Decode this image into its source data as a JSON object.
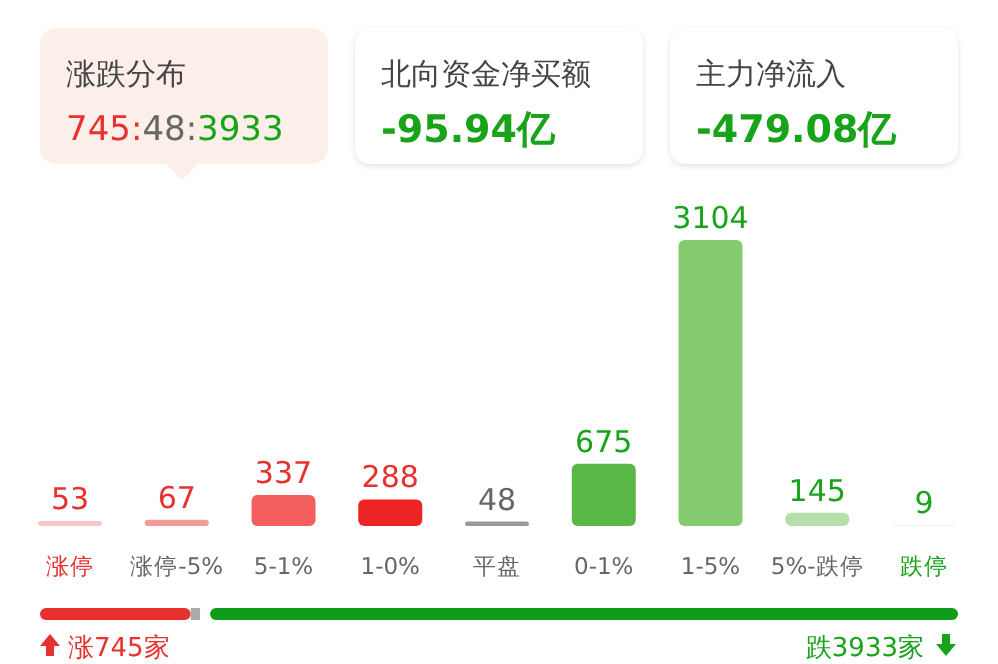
{
  "chart_data": {
    "type": "bar",
    "categories": [
      "涨停",
      "涨停-5%",
      "5-1%",
      "1-0%",
      "平盘",
      "0-1%",
      "1-5%",
      "5%-跌停",
      "跌停"
    ],
    "values": [
      53,
      67,
      337,
      288,
      48,
      675,
      3104,
      145,
      9
    ],
    "colors": [
      "#f7c6c6",
      "#f09a9a",
      "#f45e5e",
      "#ec2424",
      "#9a9a9a",
      "#58b746",
      "#84cb70",
      "#b5e0a9",
      "#e9f3e5"
    ],
    "data_labels": true,
    "annotations": [
      "涨跌分布",
      "745:48:3933",
      "北向资金净买额",
      "-95.94亿",
      "主力净流入",
      "-479.08亿",
      "涨745家",
      "跌3933家"
    ]
  }
}
